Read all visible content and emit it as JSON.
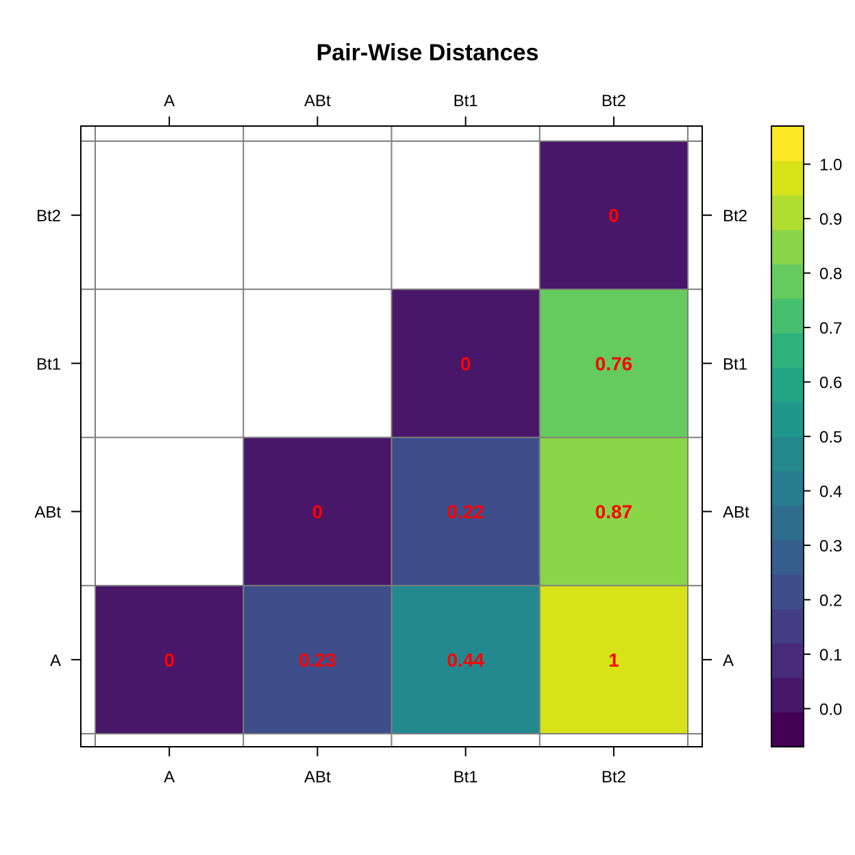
{
  "chart_data": {
    "type": "heatmap",
    "title": "Pair-Wise Distances",
    "categories": [
      "A",
      "ABt",
      "Bt1",
      "Bt2"
    ],
    "cells": [
      {
        "x": "A",
        "y": "A",
        "value": 0,
        "label": "0"
      },
      {
        "x": "ABt",
        "y": "A",
        "value": 0.23,
        "label": "0.23"
      },
      {
        "x": "Bt1",
        "y": "A",
        "value": 0.44,
        "label": "0.44"
      },
      {
        "x": "Bt2",
        "y": "A",
        "value": 1.0,
        "label": "1"
      },
      {
        "x": "ABt",
        "y": "ABt",
        "value": 0,
        "label": "0"
      },
      {
        "x": "Bt1",
        "y": "ABt",
        "value": 0.22,
        "label": "0.22"
      },
      {
        "x": "Bt2",
        "y": "ABt",
        "value": 0.87,
        "label": "0.87"
      },
      {
        "x": "Bt1",
        "y": "Bt1",
        "value": 0,
        "label": "0"
      },
      {
        "x": "Bt2",
        "y": "Bt1",
        "value": 0.76,
        "label": "0.76"
      },
      {
        "x": "Bt2",
        "y": "Bt2",
        "value": 0,
        "label": "0"
      }
    ],
    "colorbar": {
      "range": [
        -0.07,
        1.07
      ],
      "ticks": [
        "0.0",
        "0.1",
        "0.2",
        "0.3",
        "0.4",
        "0.5",
        "0.6",
        "0.7",
        "0.8",
        "0.9",
        "1.0"
      ],
      "palette": [
        "#440154",
        "#481769",
        "#472A7A",
        "#433D84",
        "#3D4E8A",
        "#355E8D",
        "#2E6D8E",
        "#297B8E",
        "#23898E",
        "#1F978B",
        "#21A585",
        "#2EB37C",
        "#46C06F",
        "#65CB5E",
        "#89D548",
        "#B0DD2F",
        "#D8E219",
        "#FDE725"
      ]
    },
    "label_color": "#FF0000",
    "grid": true
  }
}
